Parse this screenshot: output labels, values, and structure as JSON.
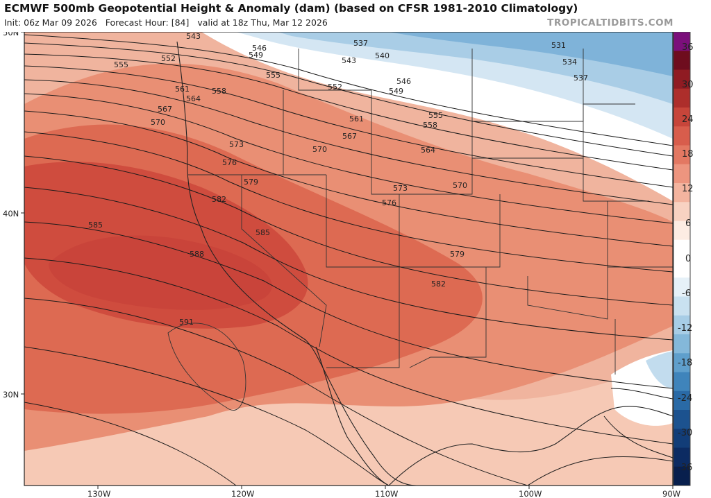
{
  "header": {
    "title": "ECMWF 500mb Geopotential Height & Anomaly (dam) (based on CFSR 1981-2010 Climatology)",
    "init": "Init: 06z Mar 09 2026",
    "forecast_hour": "Forecast Hour: [84]",
    "valid": "valid at 18z Thu, Mar 12 2026",
    "brand": "TROPICALTIDBITS.COM"
  },
  "axes": {
    "lat_labels": [
      "50N",
      "40N",
      "30N"
    ],
    "lon_labels": [
      "130W",
      "120W",
      "110W",
      "100W",
      "90W"
    ]
  },
  "colorbar": {
    "labels": [
      "36",
      "30",
      "24",
      "18",
      "12",
      "6",
      "0",
      "-6",
      "-12",
      "-18",
      "-24",
      "-30",
      "-36"
    ],
    "colors": [
      "#7b0f7b",
      "#6e0d1e",
      "#8f1b22",
      "#ad2e2b",
      "#c7453a",
      "#d85d4c",
      "#e37862",
      "#ed957f",
      "#f3b49f",
      "#f8d2c2",
      "#fdece3",
      "#ffffff",
      "#ffffff",
      "#e6f1f8",
      "#c9e1f0",
      "#a7cde6",
      "#84b8da",
      "#5f9fcc",
      "#3f84bb",
      "#2a6aa6",
      "#1c528f",
      "#123d78",
      "#0c2b62",
      "#081f4d"
    ]
  },
  "contour_labels": [
    "543",
    "537",
    "531",
    "546",
    "540",
    "534",
    "549",
    "543",
    "537",
    "552",
    "555",
    "555",
    "552",
    "549",
    "546",
    "561",
    "558",
    "564",
    "567",
    "561",
    "555",
    "570",
    "567",
    "558",
    "573",
    "570",
    "564",
    "576",
    "573",
    "570",
    "579",
    "576",
    "582",
    "579",
    "585",
    "585",
    "588",
    "582",
    "591"
  ],
  "legend_colors": {
    "pos_strong": "#c9483c",
    "pos_mid": "#df6f58",
    "pos_weak": "#eda488",
    "neutral": "#ffffff",
    "neg_weak": "#b9d8ec",
    "neg_mid": "#6aa7d2",
    "land_outline": "#222222"
  }
}
